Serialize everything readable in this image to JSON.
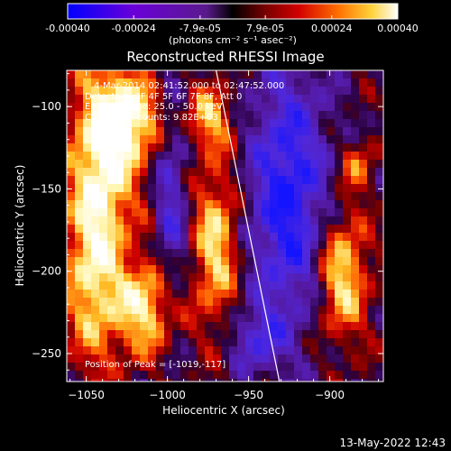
{
  "colorbar": {
    "ticks": [
      "-0.00040",
      "-0.00024",
      "-7.9e-05",
      "7.9e-05",
      "0.00024",
      "0.00040"
    ],
    "tick_values": [
      -0.0004,
      -0.00024,
      -7.9e-05,
      7.9e-05,
      0.00024,
      0.0004
    ],
    "range": [
      -0.0004,
      0.0004
    ],
    "units": "(photons cm⁻² s⁻¹ asec⁻²)"
  },
  "chart_data": {
    "type": "heatmap",
    "title": "Reconstructed RHESSI Image",
    "xlabel": "Heliocentric X (arcsec)",
    "ylabel": "Heliocentric Y (arcsec)",
    "xlim": [
      -1062,
      -867
    ],
    "ylim": [
      -267,
      -78
    ],
    "x_ticks": [
      -1050,
      -1000,
      -950,
      -900
    ],
    "y_ticks": [
      -250,
      -200,
      -150,
      -100
    ],
    "annotations": [
      "4-Mar-2014 02:41:52.000 to 02:47:52.000",
      "Detectors: 3F 4F 5F 6F 7F 8F, Att 0",
      "Energy Range: 25.0 - 50.0 keV",
      "Clean     Total counts: 9.82E+03",
      "Position of Peak = [-1019,-117]"
    ],
    "limb_line": {
      "x": [
        -970,
        -931
      ],
      "y": [
        -78,
        -267
      ]
    },
    "peak": {
      "x": -1019,
      "y": -117
    }
  },
  "footer": {
    "timestamp": "13-May-2022 12:43"
  }
}
